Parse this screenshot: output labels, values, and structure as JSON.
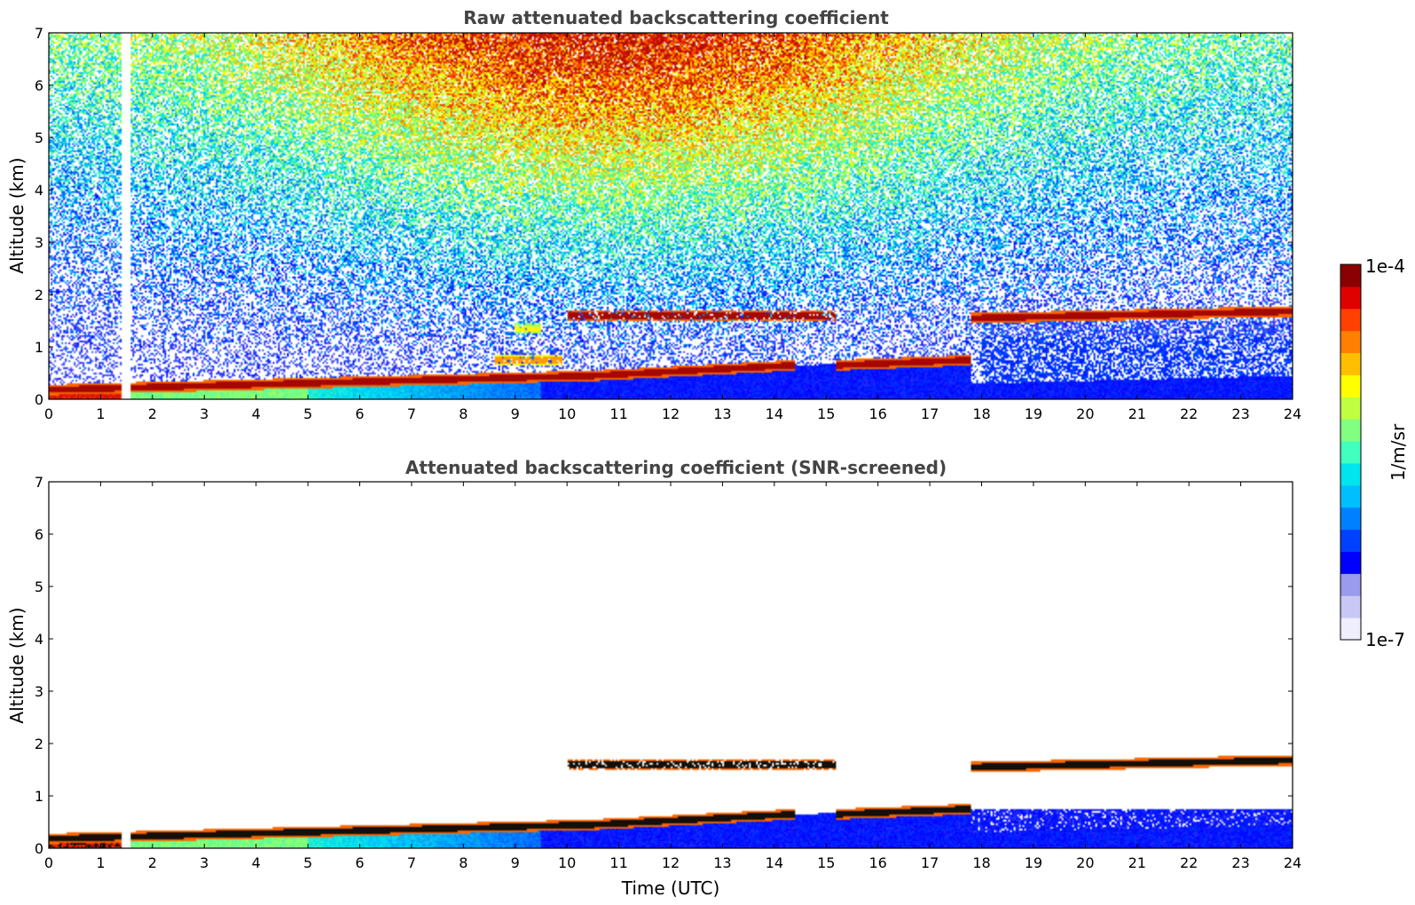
{
  "chart_data": [
    {
      "type": "heatmap",
      "title": "Raw attenuated backscattering coefficient",
      "xlabel": "",
      "ylabel": "Altitude (km)",
      "xlim": [
        0,
        24
      ],
      "ylim": [
        0,
        7
      ],
      "xticks": [
        "0",
        "1",
        "2",
        "3",
        "4",
        "5",
        "6",
        "7",
        "8",
        "9",
        "10",
        "11",
        "12",
        "13",
        "14",
        "15",
        "16",
        "17",
        "18",
        "19",
        "20",
        "21",
        "22",
        "23",
        "24"
      ],
      "yticks": [
        "0",
        "1",
        "2",
        "3",
        "4",
        "5",
        "6",
        "7"
      ],
      "color_scale": {
        "min": "1e-7",
        "max": "1e-4",
        "unit": "1/m/sr",
        "log": true
      },
      "layers": [
        {
          "start_h": 0.0,
          "end_h": 10.5,
          "base_km_start": 0.18,
          "base_km_end": 0.45,
          "intensity": 1.0
        },
        {
          "start_h": 10.5,
          "end_h": 14.4,
          "base_km_start": 0.45,
          "base_km_end": 0.65,
          "intensity": 1.0
        },
        {
          "start_h": 15.2,
          "end_h": 17.8,
          "base_km_start": 0.65,
          "base_km_end": 0.75,
          "intensity": 1.0
        },
        {
          "start_h": 10.0,
          "end_h": 15.2,
          "base_km_start": 1.6,
          "base_km_end": 1.6,
          "intensity": 1.0,
          "broken": true
        },
        {
          "start_h": 17.8,
          "end_h": 24.0,
          "base_km_start": 1.55,
          "base_km_end": 1.68,
          "intensity": 1.0
        },
        {
          "start_h": 8.6,
          "end_h": 9.9,
          "base_km_start": 0.75,
          "base_km_end": 0.75,
          "intensity": 0.8,
          "broken": true
        },
        {
          "start_h": 9.0,
          "end_h": 9.5,
          "base_km_start": 1.35,
          "base_km_end": 1.35,
          "intensity": 0.7,
          "broken": true
        }
      ],
      "gaps_h": [
        [
          1.42,
          1.58
        ]
      ],
      "background_signal": "noisy molecular signal increasing with altitude, strongest 9–14 h"
    },
    {
      "type": "heatmap",
      "title": "Attenuated backscattering coefficient (SNR-screened)",
      "xlabel": "Time (UTC)",
      "ylabel": "Altitude (km)",
      "xlim": [
        0,
        24
      ],
      "ylim": [
        0,
        7
      ],
      "xticks": [
        "0",
        "1",
        "2",
        "3",
        "4",
        "5",
        "6",
        "7",
        "8",
        "9",
        "10",
        "11",
        "12",
        "13",
        "14",
        "15",
        "16",
        "17",
        "18",
        "19",
        "20",
        "21",
        "22",
        "23",
        "24"
      ],
      "yticks": [
        "0",
        "1",
        "2",
        "3",
        "4",
        "5",
        "6",
        "7"
      ],
      "color_scale": {
        "min": "1e-7",
        "max": "1e-4",
        "unit": "1/m/sr",
        "log": true
      },
      "layers": [
        {
          "start_h": 0.0,
          "end_h": 10.5,
          "base_km_start": 0.18,
          "base_km_end": 0.45,
          "intensity": 1.0
        },
        {
          "start_h": 10.5,
          "end_h": 14.4,
          "base_km_start": 0.45,
          "base_km_end": 0.65,
          "intensity": 1.0
        },
        {
          "start_h": 15.2,
          "end_h": 17.8,
          "base_km_start": 0.65,
          "base_km_end": 0.75,
          "intensity": 1.0
        },
        {
          "start_h": 10.0,
          "end_h": 15.2,
          "base_km_start": 1.6,
          "base_km_end": 1.6,
          "intensity": 1.0,
          "broken": true
        },
        {
          "start_h": 17.8,
          "end_h": 24.0,
          "base_km_start": 1.55,
          "base_km_end": 1.68,
          "intensity": 1.0
        }
      ],
      "gaps_h": [
        [
          1.42,
          1.58
        ]
      ],
      "background_signal": "screened: only boundary layer and clouds remain"
    }
  ],
  "colorbar": {
    "top_label": "1e-4",
    "bottom_label": "1e-7",
    "unit_label": "1/m/sr",
    "colors": [
      "#eeeeff",
      "#c8c8f4",
      "#9a9aee",
      "#0000ff",
      "#0040ff",
      "#0080ff",
      "#00bfff",
      "#00e5ee",
      "#40ffbf",
      "#80ff80",
      "#bfff40",
      "#ffff00",
      "#ffbf00",
      "#ff8000",
      "#ff4000",
      "#e00000",
      "#8b0000"
    ]
  }
}
